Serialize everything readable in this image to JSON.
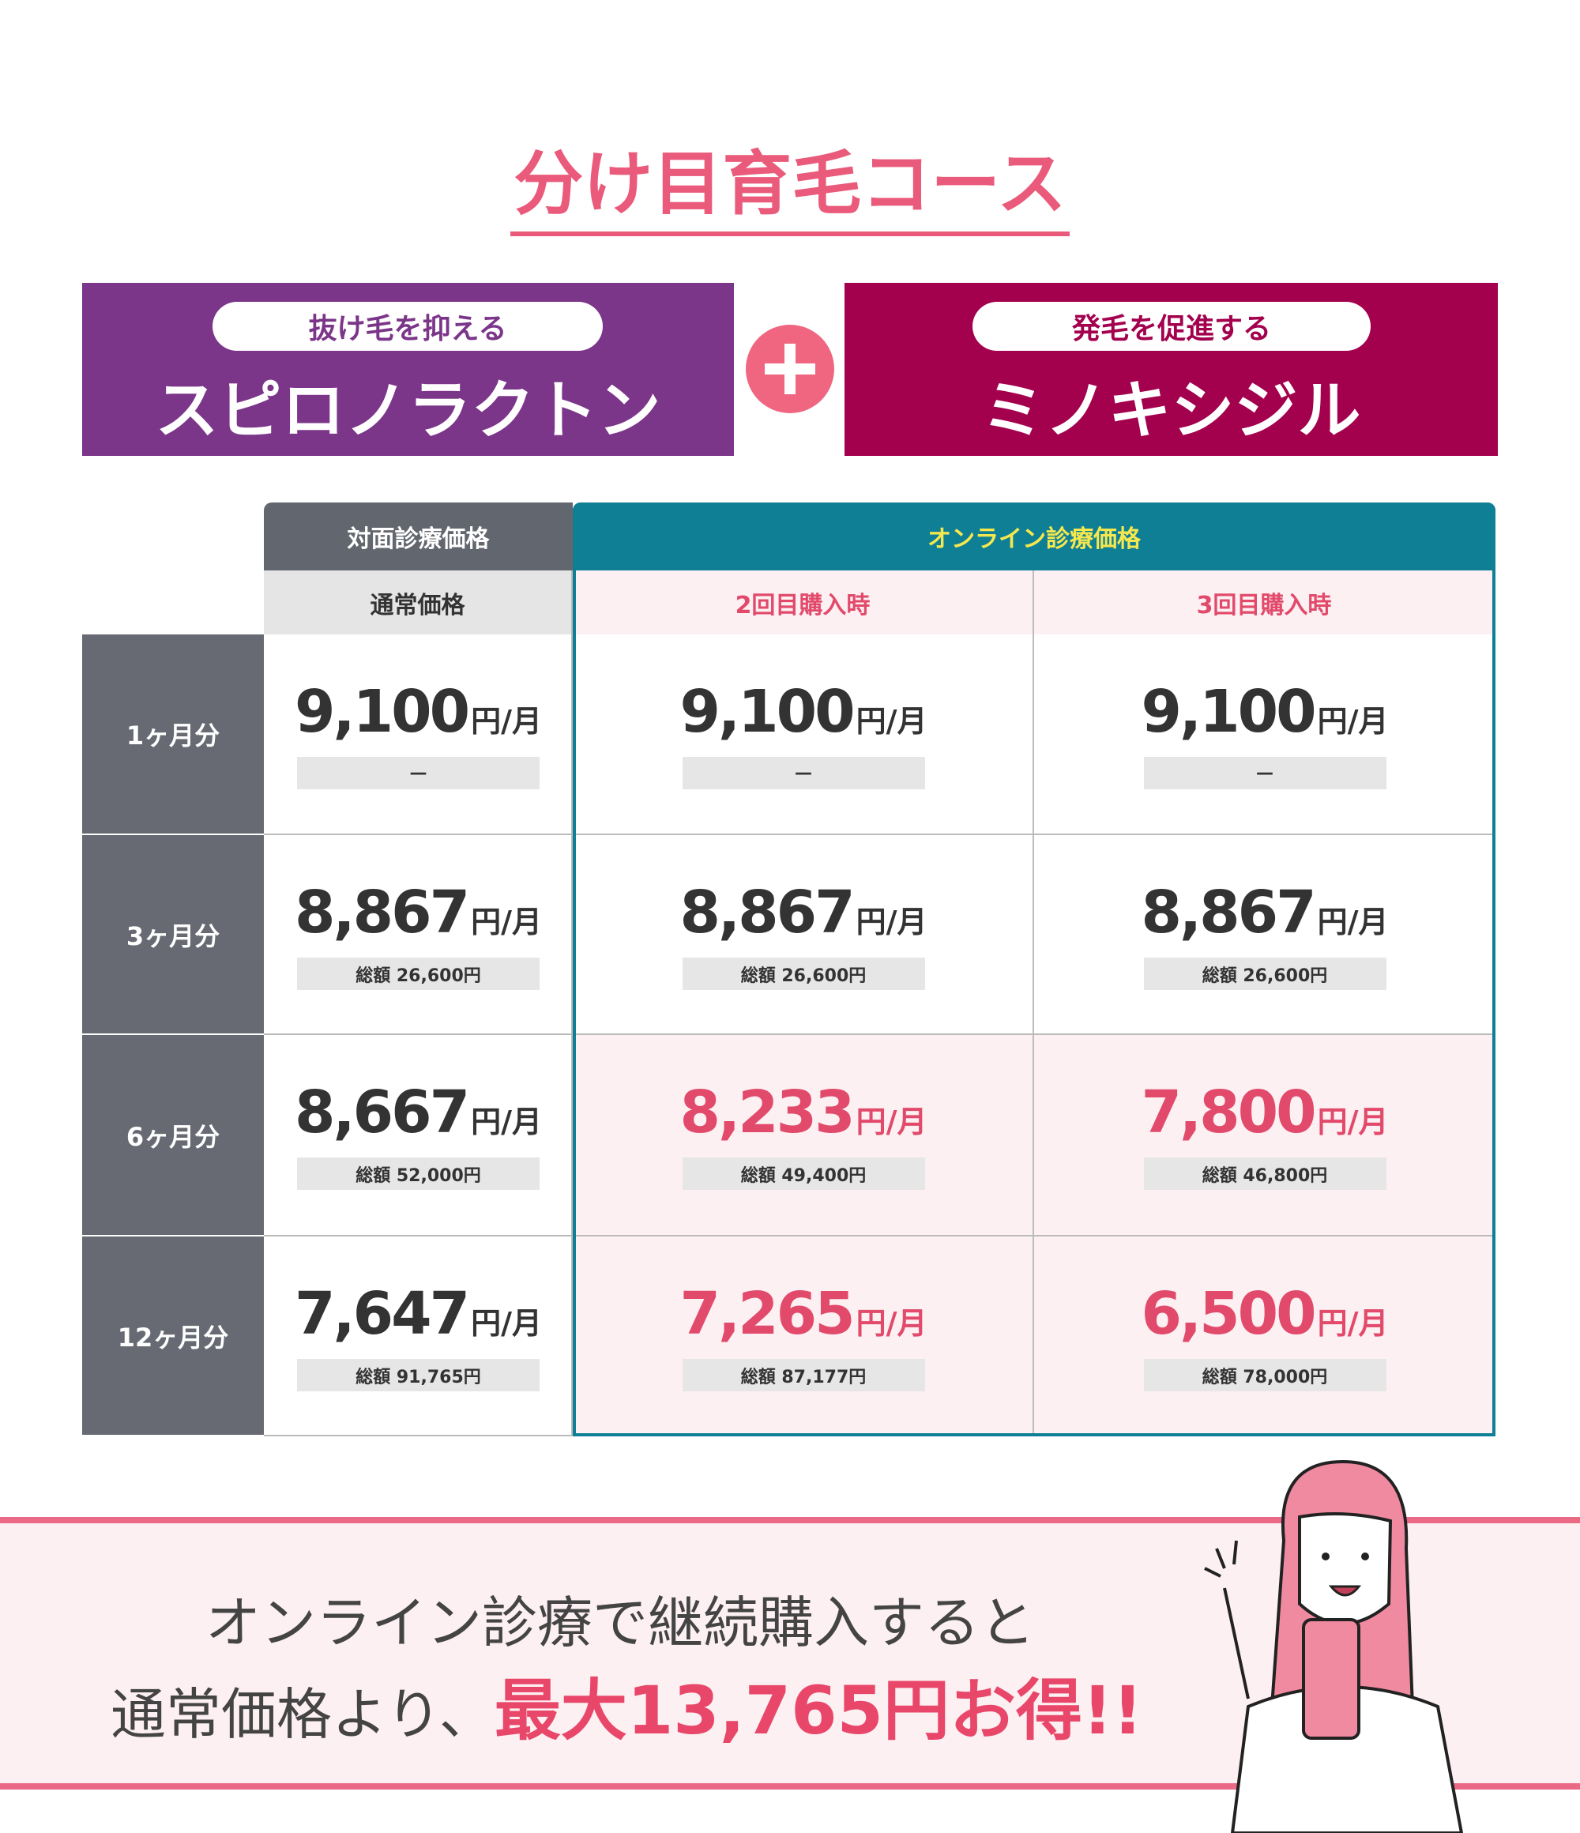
{
  "title": "分け目育毛コース",
  "drugs": [
    {
      "tag": "抜け毛を抑える",
      "name": "スピロノラクトン"
    },
    {
      "tag": "発毛を促進する",
      "name": "ミノキシジル"
    }
  ],
  "table": {
    "group_headers": [
      "対面診療価格",
      "オンライン診療価格"
    ],
    "columns": [
      "通常価格",
      "2回目購入時",
      "3回目購入時"
    ],
    "unit": "円/月",
    "rows": [
      {
        "label": "1ヶ月分",
        "cells": [
          {
            "price": "9,100",
            "total": "—"
          },
          {
            "price": "9,100",
            "total": "—"
          },
          {
            "price": "9,100",
            "total": "—"
          }
        ]
      },
      {
        "label": "3ヶ月分",
        "cells": [
          {
            "price": "8,867",
            "total": "総額 26,600円"
          },
          {
            "price": "8,867",
            "total": "総額 26,600円"
          },
          {
            "price": "8,867",
            "total": "総額 26,600円"
          }
        ]
      },
      {
        "label": "6ヶ月分",
        "cells": [
          {
            "price": "8,667",
            "total": "総額 52,000円"
          },
          {
            "price": "8,233",
            "total": "総額 49,400円"
          },
          {
            "price": "7,800",
            "total": "総額 46,800円"
          }
        ]
      },
      {
        "label": "12ヶ月分",
        "cells": [
          {
            "price": "7,647",
            "total": "総額 91,765円"
          },
          {
            "price": "7,265",
            "total": "総額 87,177円"
          },
          {
            "price": "6,500",
            "total": "総額 78,000円"
          }
        ]
      }
    ]
  },
  "banner": {
    "line1": "オンライン診療で継続購入すると",
    "line2": "通常価格より、",
    "highlight": "最大13,765円お得!!"
  }
}
